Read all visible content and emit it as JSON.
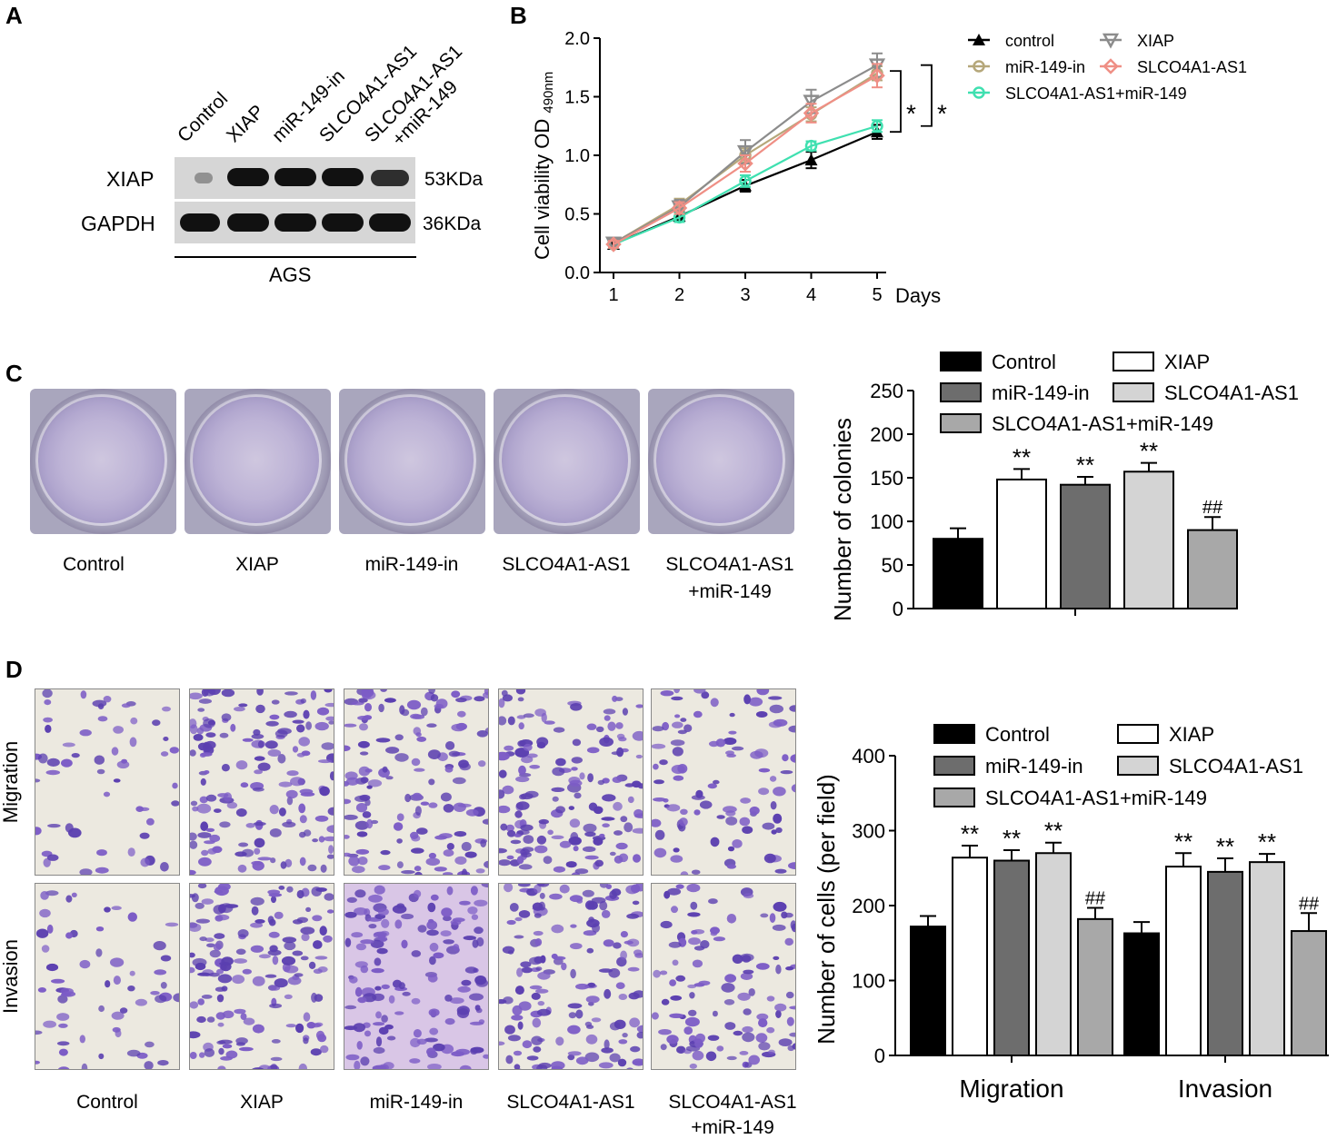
{
  "panels": {
    "a": "A",
    "b": "B",
    "c": "C",
    "d": "D"
  },
  "panel_a": {
    "lanes": [
      "Control",
      "XIAP",
      "miR-149-in",
      "SLCO4A1-AS1",
      "SLCO4A1-AS1",
      "+miR-149"
    ],
    "rows": [
      {
        "label": "XIAP",
        "kda": "53KDa",
        "intensity": [
          0.25,
          1.0,
          1.0,
          1.0,
          0.85
        ]
      },
      {
        "label": "GAPDH",
        "kda": "36KDa",
        "intensity": [
          1.0,
          1.0,
          1.0,
          1.0,
          1.0
        ]
      }
    ],
    "cell_line": "AGS"
  },
  "panel_c": {
    "captions": [
      "Control",
      "XIAP",
      "miR-149-in",
      "SLCO4A1-AS1",
      "SLCO4A1-AS1",
      "+miR-149"
    ]
  },
  "panel_d": {
    "row_labels": [
      "Migration",
      "Invasion"
    ],
    "captions": [
      "Control",
      "XIAP",
      "miR-149-in",
      "SLCO4A1-AS1",
      "SLCO4A1-AS1",
      "+miR-149"
    ]
  },
  "chart_data": [
    {
      "type": "line",
      "ylabel": "Cell viability OD",
      "ylabel_sub": "490nm",
      "xlabel": "Days",
      "x": [
        1,
        2,
        3,
        4,
        5
      ],
      "ylim": [
        0,
        2.0
      ],
      "yticks": [
        "0.0",
        "0.5",
        "1.0",
        "1.5",
        "2.0"
      ],
      "series": [
        {
          "name": "control",
          "values": [
            0.24,
            0.48,
            0.74,
            0.96,
            1.2
          ],
          "err": [
            0.03,
            0.04,
            0.05,
            0.07,
            0.06
          ],
          "color": "#000000",
          "marker": "triangle-up"
        },
        {
          "name": "miR-149-in",
          "values": [
            0.25,
            0.58,
            1.0,
            1.35,
            1.7
          ],
          "err": [
            0.03,
            0.05,
            0.06,
            0.06,
            0.06
          ],
          "color": "#b5a77a",
          "marker": "circle"
        },
        {
          "name": "SLCO4A1-AS1+miR-149",
          "values": [
            0.24,
            0.47,
            0.78,
            1.08,
            1.25
          ],
          "err": [
            0.03,
            0.04,
            0.05,
            0.04,
            0.05
          ],
          "color": "#3fe0b0",
          "marker": "circle"
        },
        {
          "name": "XIAP",
          "values": [
            0.25,
            0.56,
            1.03,
            1.46,
            1.77
          ],
          "err": [
            0.03,
            0.06,
            0.1,
            0.1,
            0.1
          ],
          "color": "#8c8c8c",
          "marker": "triangle-down"
        },
        {
          "name": "SLCO4A1-AS1",
          "values": [
            0.24,
            0.55,
            0.93,
            1.36,
            1.68
          ],
          "err": [
            0.03,
            0.05,
            0.07,
            0.08,
            0.1
          ],
          "color": "#ef8f85",
          "marker": "diamond"
        }
      ],
      "annotations": [
        "*",
        "*"
      ]
    },
    {
      "type": "bar",
      "ylabel": "Number of colonies",
      "ylim": [
        0,
        250
      ],
      "yticks": [
        "0",
        "50",
        "100",
        "150",
        "200",
        "250"
      ],
      "series": [
        {
          "name": "Control",
          "value": 80,
          "err": 12,
          "color": "#000000",
          "mark": ""
        },
        {
          "name": "miR-149-in",
          "value": 142,
          "err": 9,
          "color": "#6d6d6d",
          "mark": "**"
        },
        {
          "name": "SLCO4A1-AS1+miR-149",
          "value": 90,
          "err": 15,
          "color": "#a8a8a8",
          "mark": "##"
        },
        {
          "name": "XIAP",
          "value": 148,
          "err": 12,
          "color": "#ffffff",
          "mark": "**"
        },
        {
          "name": "SLCO4A1-AS1",
          "value": 157,
          "err": 10,
          "color": "#d4d4d4",
          "mark": "**"
        }
      ],
      "bar_order": [
        "Control",
        "XIAP",
        "miR-149-in",
        "SLCO4A1-AS1",
        "SLCO4A1-AS1+miR-149"
      ]
    },
    {
      "type": "bar",
      "ylabel": "Number of cells (per field)",
      "ylim": [
        0,
        400
      ],
      "yticks": [
        "0",
        "100",
        "200",
        "300",
        "400"
      ],
      "categories": [
        "Migration",
        "Invasion"
      ],
      "series": [
        {
          "name": "Control",
          "values": [
            172,
            163
          ],
          "err": [
            14,
            15
          ],
          "color": "#000000",
          "marks": [
            "",
            ""
          ]
        },
        {
          "name": "miR-149-in",
          "values": [
            260,
            245
          ],
          "err": [
            14,
            18
          ],
          "color": "#6d6d6d",
          "marks": [
            "**",
            "**"
          ]
        },
        {
          "name": "SLCO4A1-AS1+miR-149",
          "values": [
            182,
            166
          ],
          "err": [
            15,
            24
          ],
          "color": "#a8a8a8",
          "marks": [
            "##",
            "##"
          ]
        },
        {
          "name": "XIAP",
          "values": [
            264,
            252
          ],
          "err": [
            16,
            18
          ],
          "color": "#ffffff",
          "marks": [
            "**",
            "**"
          ]
        },
        {
          "name": "SLCO4A1-AS1",
          "values": [
            270,
            258
          ],
          "err": [
            14,
            11
          ],
          "color": "#d4d4d4",
          "marks": [
            "**",
            "**"
          ]
        }
      ],
      "bar_order": [
        "Control",
        "XIAP",
        "miR-149-in",
        "SLCO4A1-AS1",
        "SLCO4A1-AS1+miR-149"
      ]
    }
  ]
}
